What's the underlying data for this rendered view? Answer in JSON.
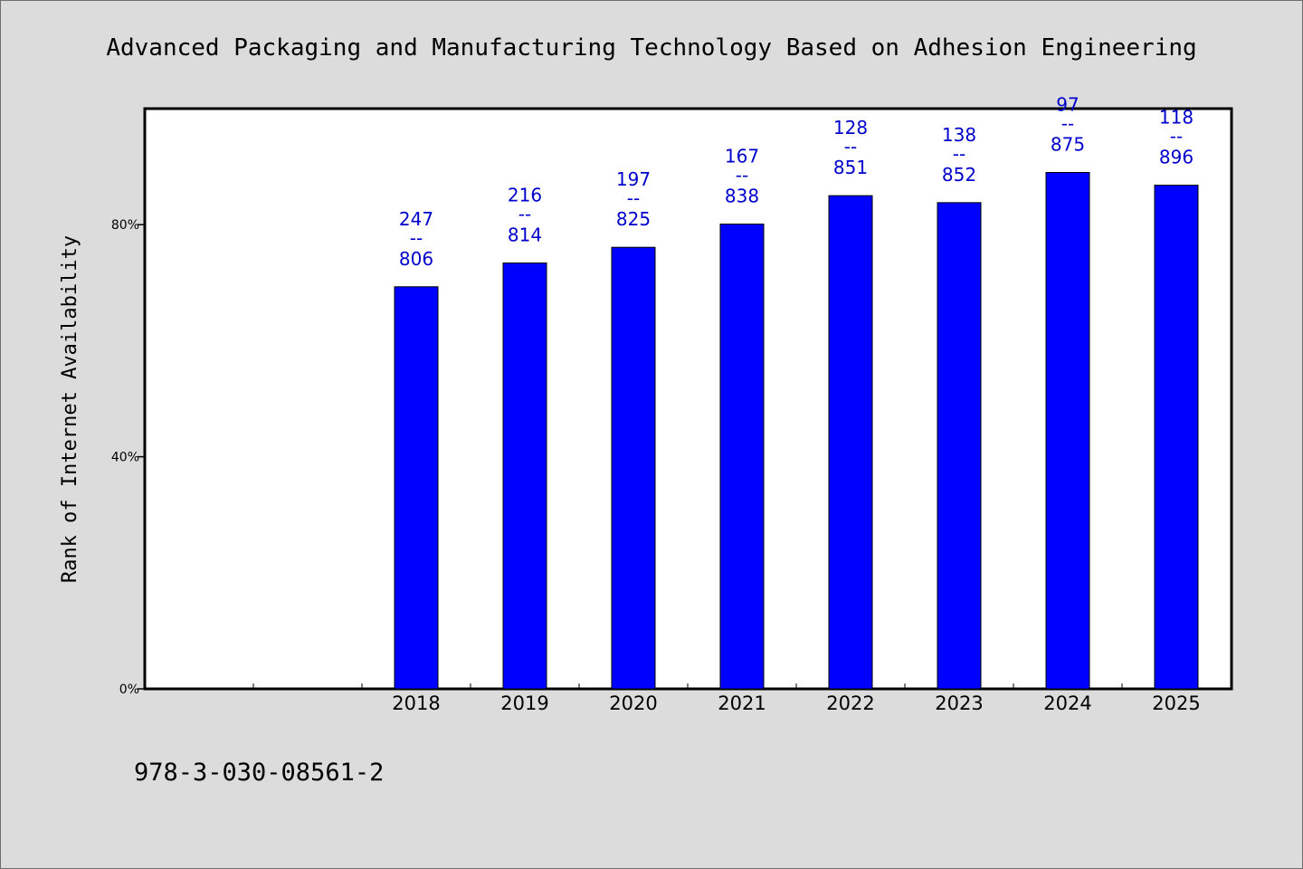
{
  "chart_data": {
    "type": "bar",
    "title": "Advanced Packaging and Manufacturing Technology Based on Adhesion Engineering",
    "ylabel": "Rank of Internet Availability",
    "xlabel": "",
    "categories": [
      "2018",
      "2019",
      "2020",
      "2021",
      "2022",
      "2023",
      "2024",
      "2025"
    ],
    "values": [
      69.3,
      73.4,
      76.1,
      80.1,
      85.0,
      83.8,
      89.0,
      86.8
    ],
    "labels": [
      {
        "top": "247",
        "sep": "--",
        "bottom": "806"
      },
      {
        "top": "216",
        "sep": "--",
        "bottom": "814"
      },
      {
        "top": "197",
        "sep": "--",
        "bottom": "825"
      },
      {
        "top": "167",
        "sep": "--",
        "bottom": "838"
      },
      {
        "top": "128",
        "sep": "--",
        "bottom": "851"
      },
      {
        "top": "138",
        "sep": "--",
        "bottom": "852"
      },
      {
        "top": "97",
        "sep": "--",
        "bottom": "875"
      },
      {
        "top": "118",
        "sep": "--",
        "bottom": "896"
      }
    ],
    "leading_empty_slots": 2,
    "ylim": [
      0,
      100
    ],
    "yticks": [
      0,
      40,
      80
    ],
    "ytick_labels": [
      "0%",
      "40%",
      "80%"
    ],
    "grid": false,
    "colors": {
      "bar": "#0000ff",
      "label": "#0000cc",
      "background": "#dcdcdc",
      "plot_area": "#ffffff"
    }
  },
  "footer": {
    "isbn": "978-3-030-08561-2"
  }
}
